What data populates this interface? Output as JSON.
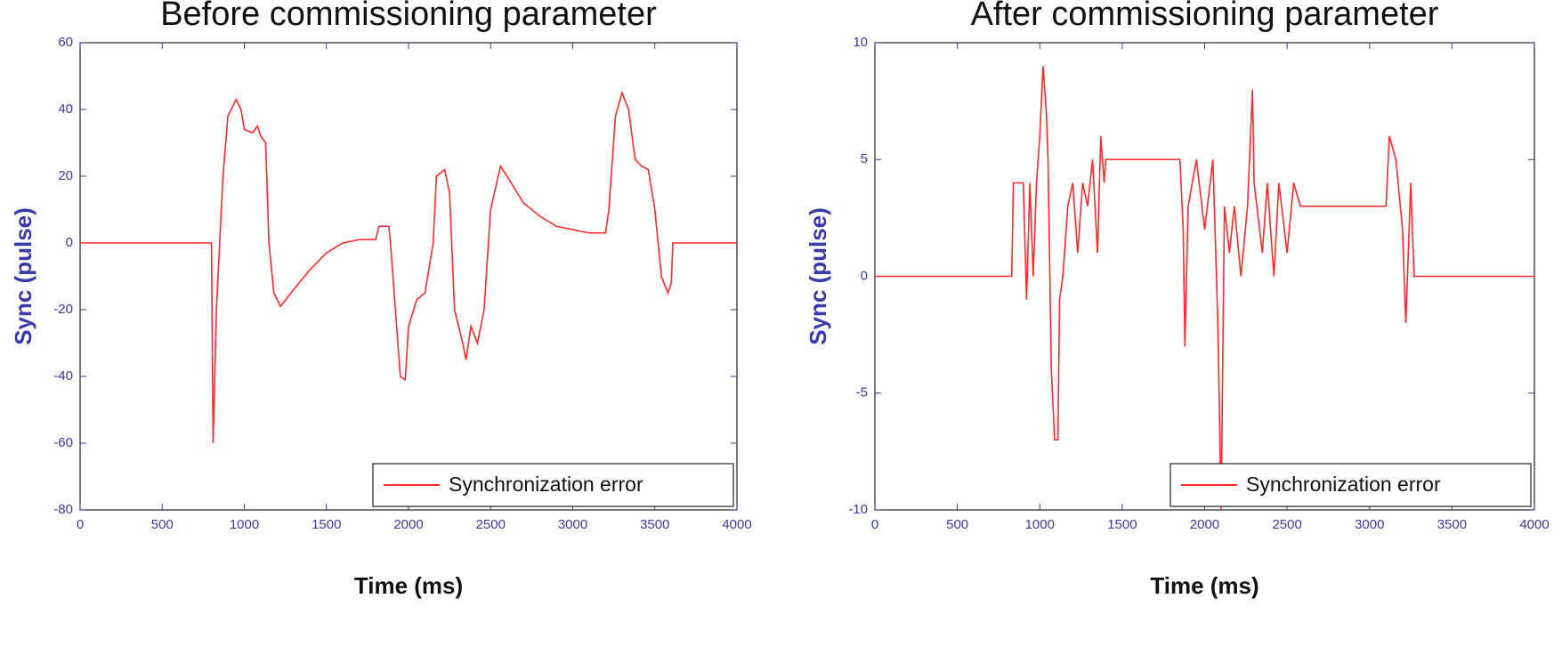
{
  "chart_data": [
    {
      "type": "line",
      "title": "Before commissioning parameter",
      "x_label": "Time (ms)",
      "y_label": "Sync (pulse)",
      "xlim": [
        0,
        4000
      ],
      "xticks": [
        0,
        500,
        1000,
        1500,
        2000,
        2500,
        3000,
        3500,
        4000
      ],
      "ylim": [
        -80,
        60
      ],
      "yticks": [
        -80,
        -60,
        -40,
        -20,
        0,
        20,
        40,
        60
      ],
      "grid": false,
      "legend": "lower right",
      "x": [
        0,
        800,
        810,
        830,
        870,
        900,
        950,
        980,
        1000,
        1050,
        1080,
        1100,
        1130,
        1150,
        1180,
        1220,
        1300,
        1400,
        1500,
        1600,
        1700,
        1800,
        1820,
        1880,
        1890,
        1920,
        1950,
        1980,
        2000,
        2050,
        2100,
        2150,
        2170,
        2220,
        2250,
        2280,
        2330,
        2350,
        2380,
        2420,
        2460,
        2500,
        2560,
        2600,
        2700,
        2800,
        2900,
        3000,
        3100,
        3200,
        3220,
        3260,
        3300,
        3340,
        3380,
        3420,
        3460,
        3500,
        3540,
        3580,
        3600,
        3610,
        4000
      ],
      "series": [
        {
          "name": "Synchronization error",
          "color": "#ff2a2a",
          "values": [
            0,
            0,
            -60,
            -20,
            20,
            38,
            43,
            40,
            34,
            33,
            35,
            32,
            30,
            0,
            -15,
            -19,
            -14,
            -8,
            -3,
            0,
            1,
            1,
            5,
            5,
            0,
            -20,
            -40,
            -41,
            -25,
            -17,
            -15,
            0,
            20,
            22,
            15,
            -20,
            -30,
            -35,
            -25,
            -30,
            -20,
            10,
            23,
            20,
            12,
            8,
            5,
            4,
            3,
            3,
            10,
            38,
            45,
            40,
            25,
            23,
            22,
            10,
            -10,
            -15,
            -12,
            0,
            0
          ]
        }
      ]
    },
    {
      "type": "line",
      "title": "After commissioning parameter",
      "x_label": "Time (ms)",
      "y_label": "Sync (pulse)",
      "xlim": [
        0,
        4000
      ],
      "xticks": [
        0,
        500,
        1000,
        1500,
        2000,
        2500,
        3000,
        3500,
        4000
      ],
      "ylim": [
        -10,
        10
      ],
      "yticks": [
        -10,
        -5,
        0,
        5,
        10
      ],
      "grid": false,
      "legend": "lower right",
      "x": [
        0,
        830,
        840,
        900,
        920,
        940,
        960,
        980,
        1000,
        1020,
        1040,
        1050,
        1070,
        1090,
        1110,
        1120,
        1140,
        1170,
        1200,
        1230,
        1260,
        1290,
        1320,
        1350,
        1370,
        1390,
        1400,
        1850,
        1870,
        1880,
        1900,
        1950,
        2000,
        2050,
        2080,
        2100,
        2120,
        2150,
        2180,
        2220,
        2260,
        2290,
        2300,
        2350,
        2380,
        2420,
        2450,
        2500,
        2540,
        2580,
        3100,
        3120,
        3160,
        3200,
        3220,
        3250,
        3270,
        4000
      ],
      "series": [
        {
          "name": "Synchronization error",
          "color": "#ff2a2a",
          "values": [
            0,
            0,
            4,
            4,
            -1,
            4,
            0,
            4,
            6,
            9,
            7,
            5,
            -4,
            -7,
            -7,
            -1,
            0,
            3,
            4,
            1,
            4,
            3,
            5,
            1,
            6,
            4,
            5,
            5,
            2,
            -3,
            3,
            5,
            2,
            5,
            -2,
            -10,
            3,
            1,
            3,
            0,
            3,
            8,
            4,
            1,
            4,
            0,
            4,
            1,
            4,
            3,
            3,
            6,
            5,
            2,
            -2,
            4,
            0,
            0
          ]
        }
      ]
    }
  ]
}
